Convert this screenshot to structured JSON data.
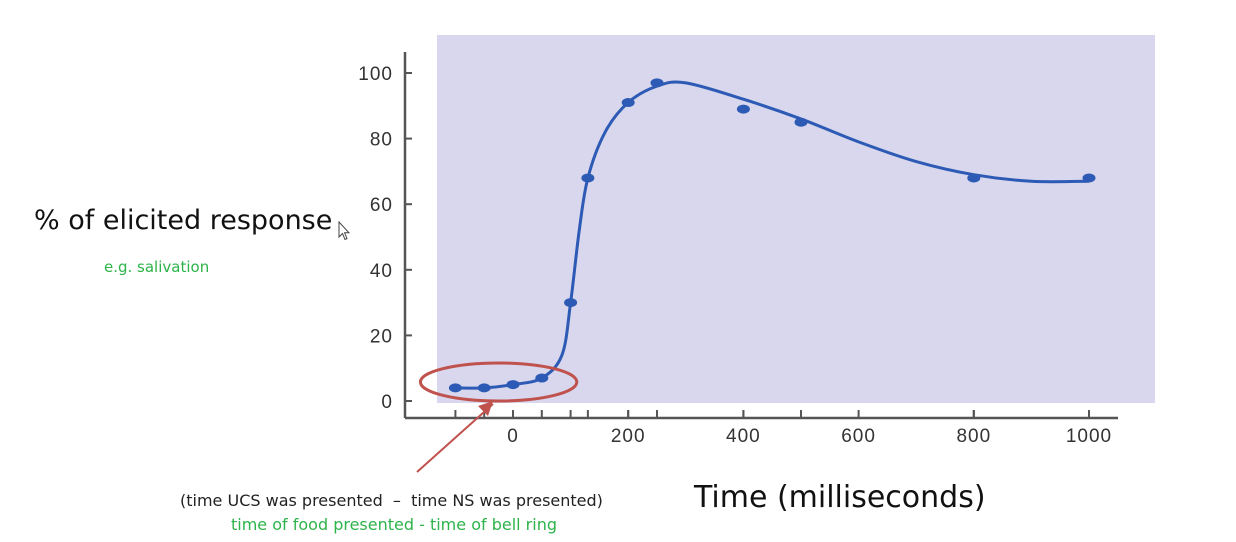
{
  "chart_data": {
    "type": "line",
    "xlabel": "Time (milliseconds)",
    "ylabel": "% of elicited response",
    "ylabel_note": "e.g. salivation",
    "xlim": [
      -120,
      1060
    ],
    "ylim": [
      0,
      105
    ],
    "x_ticks": [
      0,
      200,
      400,
      600,
      800,
      1000
    ],
    "y_ticks": [
      0,
      20,
      40,
      60,
      80,
      100
    ],
    "series": [
      {
        "points": [
          {
            "x": -100,
            "y": 4
          },
          {
            "x": -50,
            "y": 4
          },
          {
            "x": 0,
            "y": 5
          },
          {
            "x": 50,
            "y": 7
          },
          {
            "x": 100,
            "y": 30
          },
          {
            "x": 130,
            "y": 68
          },
          {
            "x": 200,
            "y": 91
          },
          {
            "x": 250,
            "y": 97
          },
          {
            "x": 400,
            "y": 89
          },
          {
            "x": 500,
            "y": 85
          },
          {
            "x": 800,
            "y": 68
          },
          {
            "x": 1000,
            "y": 68
          }
        ],
        "curve": [
          {
            "x": -100,
            "y": 4
          },
          {
            "x": -50,
            "y": 4
          },
          {
            "x": 0,
            "y": 5
          },
          {
            "x": 50,
            "y": 7
          },
          {
            "x": 85,
            "y": 14
          },
          {
            "x": 100,
            "y": 30
          },
          {
            "x": 115,
            "y": 52
          },
          {
            "x": 130,
            "y": 68
          },
          {
            "x": 160,
            "y": 82
          },
          {
            "x": 200,
            "y": 91
          },
          {
            "x": 250,
            "y": 96
          },
          {
            "x": 300,
            "y": 97
          },
          {
            "x": 400,
            "y": 92
          },
          {
            "x": 500,
            "y": 86
          },
          {
            "x": 600,
            "y": 79
          },
          {
            "x": 700,
            "y": 73
          },
          {
            "x": 800,
            "y": 69
          },
          {
            "x": 900,
            "y": 67
          },
          {
            "x": 1000,
            "y": 67
          }
        ]
      }
    ],
    "annotation_range": [
      -100,
      50
    ],
    "annotation_line1": "(time UCS was presented  –  time NS was presented)",
    "annotation_line2": "time of food presented - time of bell ring"
  },
  "colors": {
    "plot_background": "#d8d7ed",
    "series_color": "#2d5ab4",
    "highlight_ellipse": "#c0524d",
    "note_green": "#2db34a",
    "axis": "#555555"
  },
  "icons": [
    "mouse-cursor-icon"
  ]
}
